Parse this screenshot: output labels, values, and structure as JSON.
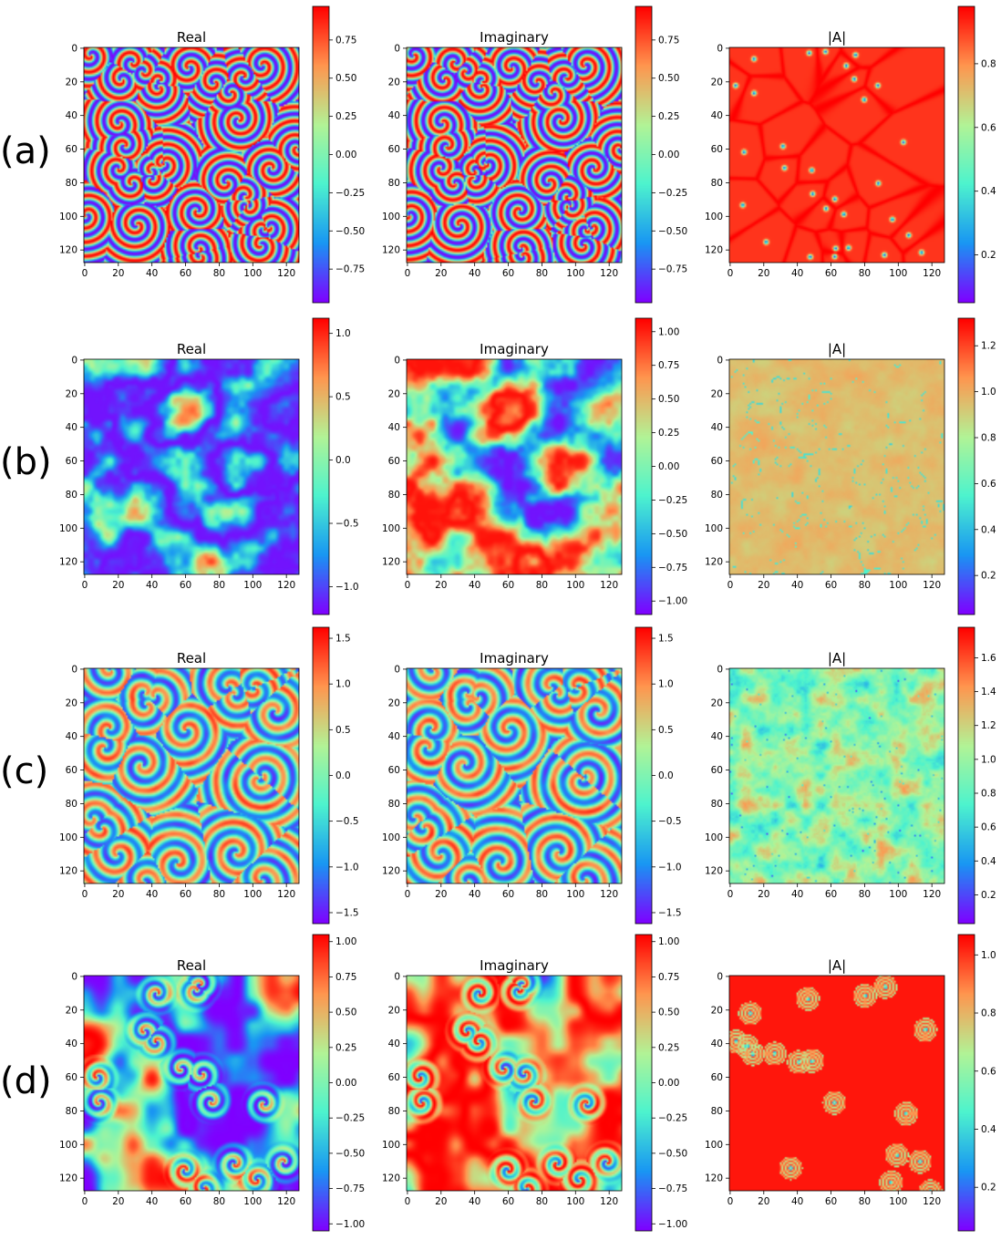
{
  "colormap": [
    "#7f00ff",
    "#1996f3",
    "#4df3ce",
    "#b2f396",
    "#ff964f",
    "#ff0000"
  ],
  "grid_size": 128,
  "panel_ticks": [
    "0",
    "20",
    "40",
    "60",
    "80",
    "100",
    "120"
  ],
  "rows": [
    {
      "label": "(a)",
      "panels": [
        {
          "title": "Real",
          "chart_data": {
            "type": "heatmap",
            "title": "Real",
            "style": "spiral-dense",
            "colorbar": {
              "min": -0.97,
              "max": 0.97,
              "ticks": [
                "0.75",
                "0.50",
                "0.25",
                "0.00",
                "−0.25",
                "−0.50",
                "−0.75"
              ],
              "values": [
                0.75,
                0.5,
                0.25,
                0,
                -0.25,
                -0.5,
                -0.75
              ]
            }
          }
        },
        {
          "title": "Imaginary",
          "chart_data": {
            "type": "heatmap",
            "title": "Imaginary",
            "style": "spiral-dense",
            "colorbar": {
              "min": -0.97,
              "max": 0.97,
              "ticks": [
                "0.75",
                "0.50",
                "0.25",
                "0.00",
                "−0.25",
                "−0.50",
                "−0.75"
              ],
              "values": [
                0.75,
                0.5,
                0.25,
                0,
                -0.25,
                -0.5,
                -0.75
              ]
            }
          }
        },
        {
          "title": "|A|",
          "chart_data": {
            "type": "heatmap",
            "title": "|A|",
            "style": "cells",
            "colorbar": {
              "min": 0.05,
              "max": 0.98,
              "ticks": [
                "0.8",
                "0.6",
                "0.4",
                "0.2"
              ],
              "values": [
                0.8,
                0.6,
                0.4,
                0.2
              ]
            }
          }
        }
      ]
    },
    {
      "label": "(b)",
      "panels": [
        {
          "title": "Real",
          "chart_data": {
            "type": "heatmap",
            "title": "Real",
            "style": "blobs",
            "colorbar": {
              "min": -1.22,
              "max": 1.12,
              "ticks": [
                "1.0",
                "0.5",
                "0.0",
                "−0.5",
                "−1.0"
              ],
              "values": [
                1,
                0.5,
                0,
                -0.5,
                -1
              ]
            }
          }
        },
        {
          "title": "Imaginary",
          "chart_data": {
            "type": "heatmap",
            "title": "Imaginary",
            "style": "blobs",
            "colorbar": {
              "min": -1.1,
              "max": 1.1,
              "ticks": [
                "1.00",
                "0.75",
                "0.50",
                "0.25",
                "0.00",
                "−0.25",
                "−0.50",
                "−0.75",
                "−1.00"
              ],
              "values": [
                1,
                0.75,
                0.5,
                0.25,
                0,
                -0.25,
                -0.5,
                -0.75,
                -1
              ]
            }
          }
        },
        {
          "title": "|A|",
          "chart_data": {
            "type": "heatmap",
            "title": "|A|",
            "style": "turbulent",
            "colorbar": {
              "min": 0.03,
              "max": 1.32,
              "ticks": [
                "1.2",
                "1.0",
                "0.8",
                "0.6",
                "0.4",
                "0.2"
              ],
              "values": [
                1.2,
                1,
                0.8,
                0.6,
                0.4,
                0.2
              ]
            }
          }
        }
      ]
    },
    {
      "label": "(c)",
      "panels": [
        {
          "title": "Real",
          "chart_data": {
            "type": "heatmap",
            "title": "Real",
            "style": "spiral-noisy",
            "colorbar": {
              "min": -1.62,
              "max": 1.62,
              "ticks": [
                "1.5",
                "1.0",
                "0.5",
                "0.0",
                "−0.5",
                "−1.0",
                "−1.5"
              ],
              "values": [
                1.5,
                1,
                0.5,
                0,
                -0.5,
                -1,
                -1.5
              ]
            }
          }
        },
        {
          "title": "Imaginary",
          "chart_data": {
            "type": "heatmap",
            "title": "Imaginary",
            "style": "spiral-noisy",
            "colorbar": {
              "min": -1.62,
              "max": 1.62,
              "ticks": [
                "1.5",
                "1.0",
                "0.5",
                "0.0",
                "−0.5",
                "−1.0",
                "−1.5"
              ],
              "values": [
                1.5,
                1,
                0.5,
                0,
                -0.5,
                -1,
                -1.5
              ]
            }
          }
        },
        {
          "title": "|A|",
          "chart_data": {
            "type": "heatmap",
            "title": "|A|",
            "style": "noise",
            "colorbar": {
              "min": 0.03,
              "max": 1.78,
              "ticks": [
                "1.6",
                "1.4",
                "1.2",
                "1.0",
                "0.8",
                "0.6",
                "0.4",
                "0.2"
              ],
              "values": [
                1.6,
                1.4,
                1.2,
                1,
                0.8,
                0.6,
                0.4,
                0.2
              ]
            }
          }
        }
      ]
    },
    {
      "label": "(d)",
      "panels": [
        {
          "title": "Real",
          "chart_data": {
            "type": "heatmap",
            "title": "Real",
            "style": "spiral-sparse",
            "colorbar": {
              "min": -1.05,
              "max": 1.05,
              "ticks": [
                "1.00",
                "0.75",
                "0.50",
                "0.25",
                "0.00",
                "−0.25",
                "−0.50",
                "−0.75",
                "−1.00"
              ],
              "values": [
                1,
                0.75,
                0.5,
                0.25,
                0,
                -0.25,
                -0.5,
                -0.75,
                -1
              ]
            }
          }
        },
        {
          "title": "Imaginary",
          "chart_data": {
            "type": "heatmap",
            "title": "Imaginary",
            "style": "spiral-sparse",
            "colorbar": {
              "min": -1.05,
              "max": 1.05,
              "ticks": [
                "1.00",
                "0.75",
                "0.50",
                "0.25",
                "0.00",
                "−0.25",
                "−0.50",
                "−0.75",
                "−1.00"
              ],
              "values": [
                1,
                0.75,
                0.5,
                0.25,
                0,
                -0.25,
                -0.5,
                -0.75,
                -1
              ]
            }
          }
        },
        {
          "title": "|A|",
          "chart_data": {
            "type": "heatmap",
            "title": "|A|",
            "style": "rings",
            "colorbar": {
              "min": 0.05,
              "max": 1.07,
              "ticks": [
                "1.0",
                "0.8",
                "0.6",
                "0.4",
                "0.2"
              ],
              "values": [
                1,
                0.8,
                0.6,
                0.4,
                0.2
              ]
            }
          }
        }
      ]
    }
  ]
}
